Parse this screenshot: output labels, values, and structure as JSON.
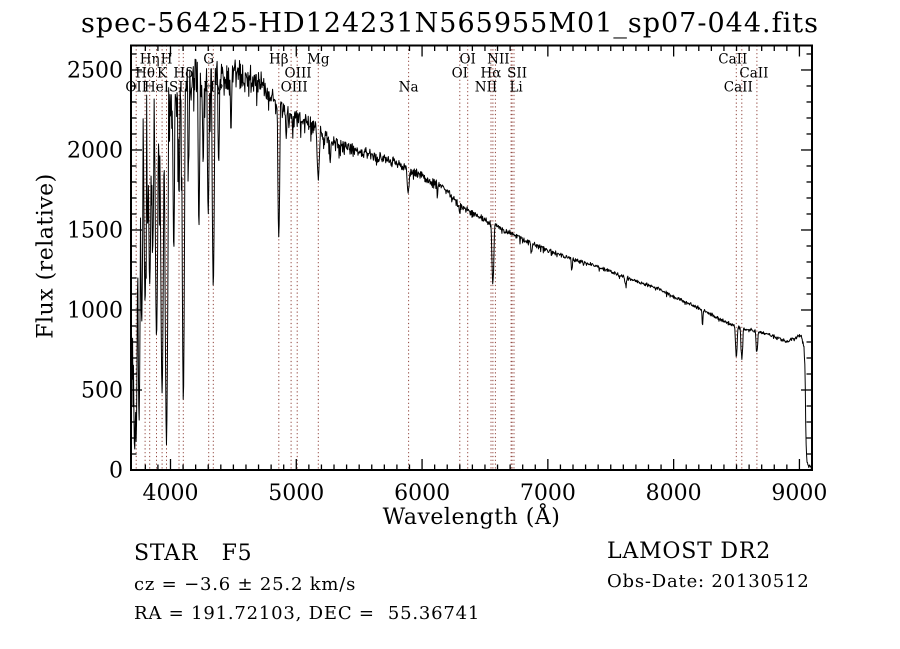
{
  "title": "spec-56425-HD124231N565955M01_sp07-044.fits",
  "annotations": {
    "class_label": "STAR   F5",
    "survey": "LAMOST DR2",
    "cz": "cz = −3.6 ± 25.2 km/s",
    "obs_date": "Obs-Date: 20130512",
    "coords": "RA = 191.72103, DEC =  55.36741"
  },
  "chart_data": {
    "type": "line",
    "title": "spec-56425-HD124231N565955M01_sp07-044.fits",
    "xlabel": "Wavelength (Å)",
    "ylabel": "Flux (relative)",
    "xlim": [
      3686,
      9100
    ],
    "ylim": [
      0,
      2653
    ],
    "x_ticks": [
      4000,
      5000,
      6000,
      7000,
      8000,
      9000
    ],
    "y_ticks": [
      0,
      500,
      1000,
      1500,
      2000,
      2500
    ],
    "x_minor_step": 100,
    "y_minor_step": 100,
    "grid": false,
    "legend": "none",
    "line_color": "#000000",
    "marker_line_color": "#8e4038",
    "marker_lines": [
      3727,
      3798,
      3835,
      3889,
      3933,
      3968,
      4068,
      4102,
      4304,
      4340,
      4861,
      4959,
      5007,
      5175,
      5893,
      6300,
      6363,
      6548,
      6563,
      6583,
      6708,
      6716,
      6731,
      8498,
      8542,
      8662
    ],
    "line_markers": [
      {
        "label": "Hη",
        "wavelength": 3835,
        "row": 1
      },
      {
        "label": "H",
        "wavelength": 3968,
        "row": 1
      },
      {
        "label": "G",
        "wavelength": 4304,
        "row": 1
      },
      {
        "label": "Hβ",
        "wavelength": 4861,
        "row": 1
      },
      {
        "label": "Mg",
        "wavelength": 5175,
        "row": 1
      },
      {
        "label": "OI",
        "wavelength": 6363,
        "row": 1
      },
      {
        "label": "NII",
        "wavelength": 6583,
        "row": 1,
        "dx": 3
      },
      {
        "label": "CaII",
        "wavelength": 8542,
        "row": 1,
        "dx": -9
      },
      {
        "label": "Hθ",
        "wavelength": 3798,
        "row": 2
      },
      {
        "label": "K",
        "wavelength": 3933,
        "row": 2
      },
      {
        "label": "Hδ",
        "wavelength": 4102,
        "row": 2
      },
      {
        "label": "OIII",
        "wavelength": 4959,
        "row": 2,
        "dx": 7
      },
      {
        "label": "OI",
        "wavelength": 6300,
        "row": 2
      },
      {
        "label": "Hα",
        "wavelength": 6563,
        "row": 2,
        "dx": -2
      },
      {
        "label": "SII",
        "wavelength": 6716,
        "row": 2,
        "dx": 5
      },
      {
        "label": "CaII",
        "wavelength": 8662,
        "row": 2,
        "dx": -3
      },
      {
        "label": "OII",
        "wavelength": 3727,
        "row": 3
      },
      {
        "label": "HeI",
        "wavelength": 3889,
        "row": 3
      },
      {
        "label": "SII",
        "wavelength": 4068,
        "row": 3
      },
      {
        "label": "Hγ",
        "wavelength": 4340,
        "row": 3
      },
      {
        "label": "OIII",
        "wavelength": 5007,
        "row": 3,
        "dx": -3
      },
      {
        "label": "Na",
        "wavelength": 5893,
        "row": 3
      },
      {
        "label": "NII",
        "wavelength": 6548,
        "row": 3,
        "dx": -5
      },
      {
        "label": "Li",
        "wavelength": 6708,
        "row": 3,
        "dx": 5
      },
      {
        "label": "CaII",
        "wavelength": 8498,
        "row": 3,
        "dx": 2
      }
    ],
    "continuum": [
      [
        3686,
        700
      ],
      [
        3700,
        1100
      ],
      [
        3725,
        1400
      ],
      [
        3745,
        1600
      ],
      [
        3765,
        1850
      ],
      [
        3800,
        1950
      ],
      [
        3850,
        2050
      ],
      [
        3900,
        2050
      ],
      [
        3950,
        2000
      ],
      [
        4000,
        2250
      ],
      [
        4050,
        2320
      ],
      [
        4100,
        2280
      ],
      [
        4150,
        2370
      ],
      [
        4200,
        2400
      ],
      [
        4300,
        2380
      ],
      [
        4400,
        2460
      ],
      [
        4500,
        2480
      ],
      [
        4600,
        2450
      ],
      [
        4700,
        2430
      ],
      [
        4800,
        2340
      ],
      [
        4861,
        2270
      ],
      [
        4900,
        2240
      ],
      [
        5000,
        2200
      ],
      [
        5100,
        2170
      ],
      [
        5175,
        2130
      ],
      [
        5250,
        2070
      ],
      [
        5350,
        2030
      ],
      [
        5450,
        2010
      ],
      [
        5550,
        1980
      ],
      [
        5650,
        1960
      ],
      [
        5750,
        1930
      ],
      [
        5850,
        1900
      ],
      [
        5950,
        1860
      ],
      [
        6050,
        1810
      ],
      [
        6160,
        1780
      ],
      [
        6300,
        1655
      ],
      [
        6400,
        1605
      ],
      [
        6500,
        1560
      ],
      [
        6600,
        1520
      ],
      [
        6714,
        1475
      ],
      [
        6800,
        1445
      ],
      [
        6900,
        1405
      ],
      [
        7030,
        1366
      ],
      [
        7200,
        1318
      ],
      [
        7350,
        1285
      ],
      [
        7560,
        1222
      ],
      [
        7700,
        1180
      ],
      [
        7880,
        1133
      ],
      [
        8040,
        1070
      ],
      [
        8140,
        1033
      ],
      [
        8260,
        990
      ],
      [
        8350,
        950
      ],
      [
        8450,
        912
      ],
      [
        8520,
        888
      ],
      [
        8600,
        878
      ],
      [
        8700,
        860
      ],
      [
        8800,
        836
      ],
      [
        8900,
        806
      ],
      [
        8970,
        830
      ],
      [
        9010,
        842
      ],
      [
        9035,
        800
      ],
      [
        9045,
        620
      ],
      [
        9052,
        180
      ],
      [
        9060,
        45
      ],
      [
        9075,
        28
      ],
      [
        9100,
        18
      ]
    ],
    "noise_amplitude": [
      [
        3686,
        780
      ],
      [
        3730,
        850
      ],
      [
        3770,
        520
      ],
      [
        3850,
        430
      ],
      [
        3950,
        520
      ],
      [
        4000,
        300
      ],
      [
        4100,
        280
      ],
      [
        4250,
        220
      ],
      [
        4400,
        130
      ],
      [
        4550,
        105
      ],
      [
        4750,
        88
      ],
      [
        4900,
        76
      ],
      [
        5100,
        62
      ],
      [
        5300,
        52
      ],
      [
        5600,
        42
      ],
      [
        5900,
        33
      ],
      [
        6200,
        28
      ],
      [
        6500,
        23
      ],
      [
        6800,
        19
      ],
      [
        7200,
        16
      ],
      [
        7600,
        14
      ],
      [
        8200,
        13
      ],
      [
        8800,
        12
      ],
      [
        9035,
        15
      ],
      [
        9060,
        22
      ],
      [
        9100,
        10
      ]
    ],
    "absorption_dips": [
      [
        3715,
        120,
        10
      ],
      [
        3727,
        180,
        8
      ],
      [
        3750,
        300,
        8
      ],
      [
        3771,
        900,
        7
      ],
      [
        3798,
        1050,
        8
      ],
      [
        3819,
        1500,
        5
      ],
      [
        3835,
        1150,
        8
      ],
      [
        3860,
        1400,
        5
      ],
      [
        3889,
        820,
        9
      ],
      [
        3933,
        470,
        10
      ],
      [
        3968,
        170,
        11
      ],
      [
        4026,
        1350,
        6
      ],
      [
        4068,
        1700,
        5
      ],
      [
        4102,
        430,
        9
      ],
      [
        4144,
        1900,
        5
      ],
      [
        4226,
        1500,
        6
      ],
      [
        4260,
        1900,
        5
      ],
      [
        4300,
        1600,
        7
      ],
      [
        4340,
        1150,
        9
      ],
      [
        4383,
        1900,
        6
      ],
      [
        4481,
        2100,
        5
      ],
      [
        4861,
        1440,
        8
      ],
      [
        4920,
        2060,
        4
      ],
      [
        5175,
        1820,
        10
      ],
      [
        5270,
        1920,
        5
      ],
      [
        5890,
        1732,
        9
      ],
      [
        6122,
        1700,
        4
      ],
      [
        6300,
        1590,
        4
      ],
      [
        6563,
        1165,
        9
      ],
      [
        6870,
        1350,
        6
      ],
      [
        7190,
        1240,
        5
      ],
      [
        7620,
        1150,
        7
      ],
      [
        8230,
        915,
        5
      ],
      [
        8498,
        718,
        8
      ],
      [
        8542,
        705,
        8
      ],
      [
        8662,
        735,
        8
      ]
    ]
  }
}
